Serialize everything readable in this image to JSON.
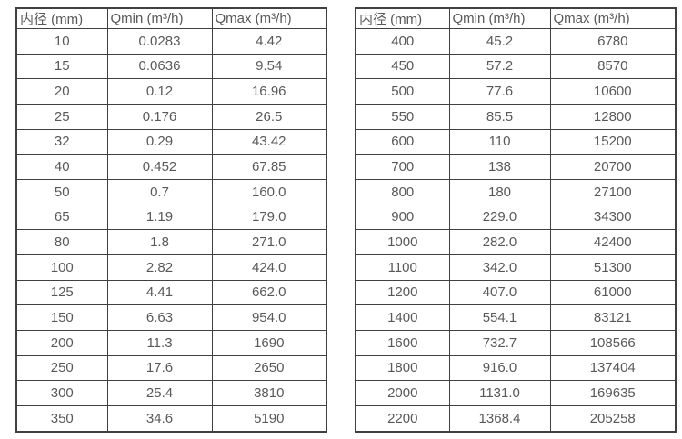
{
  "colors": {
    "background": "#ffffff",
    "border": "#404040",
    "text": "#595959"
  },
  "tables": [
    {
      "name": "diameter-flow-table-small",
      "headers": [
        "内径 (mm)",
        "Qmin (m³/h)",
        "Qmax (m³/h)"
      ],
      "rows": [
        [
          "10",
          "0.0283",
          "4.42"
        ],
        [
          "15",
          "0.0636",
          "9.54"
        ],
        [
          "20",
          "0.12",
          "16.96"
        ],
        [
          "25",
          "0.176",
          "26.5"
        ],
        [
          "32",
          "0.29",
          "43.42"
        ],
        [
          "40",
          "0.452",
          "67.85"
        ],
        [
          "50",
          "0.7",
          "160.0"
        ],
        [
          "65",
          "1.19",
          "179.0"
        ],
        [
          "80",
          "1.8",
          "271.0"
        ],
        [
          "100",
          "2.82",
          "424.0"
        ],
        [
          "125",
          "4.41",
          "662.0"
        ],
        [
          "150",
          "6.63",
          "954.0"
        ],
        [
          "200",
          "11.3",
          "1690"
        ],
        [
          "250",
          "17.6",
          "2650"
        ],
        [
          "300",
          "25.4",
          "3810"
        ],
        [
          "350",
          "34.6",
          "5190"
        ]
      ]
    },
    {
      "name": "diameter-flow-table-large",
      "headers": [
        "内径 (mm)",
        "Qmin (m³/h)",
        "Qmax (m³/h)"
      ],
      "rows": [
        [
          "400",
          "45.2",
          "6780"
        ],
        [
          "450",
          "57.2",
          "8570"
        ],
        [
          "500",
          "77.6",
          "10600"
        ],
        [
          "550",
          "85.5",
          "12800"
        ],
        [
          "600",
          "110",
          "15200"
        ],
        [
          "700",
          "138",
          "20700"
        ],
        [
          "800",
          "180",
          "27100"
        ],
        [
          "900",
          "229.0",
          "34300"
        ],
        [
          "1000",
          "282.0",
          "42400"
        ],
        [
          "1100",
          "342.0",
          "51300"
        ],
        [
          "1200",
          "407.0",
          "61000"
        ],
        [
          "1400",
          "554.1",
          "83121"
        ],
        [
          "1600",
          "732.7",
          "108566"
        ],
        [
          "1800",
          "916.0",
          "137404"
        ],
        [
          "2000",
          "1131.0",
          "169635"
        ],
        [
          "2200",
          "1368.4",
          "205258"
        ]
      ]
    }
  ]
}
